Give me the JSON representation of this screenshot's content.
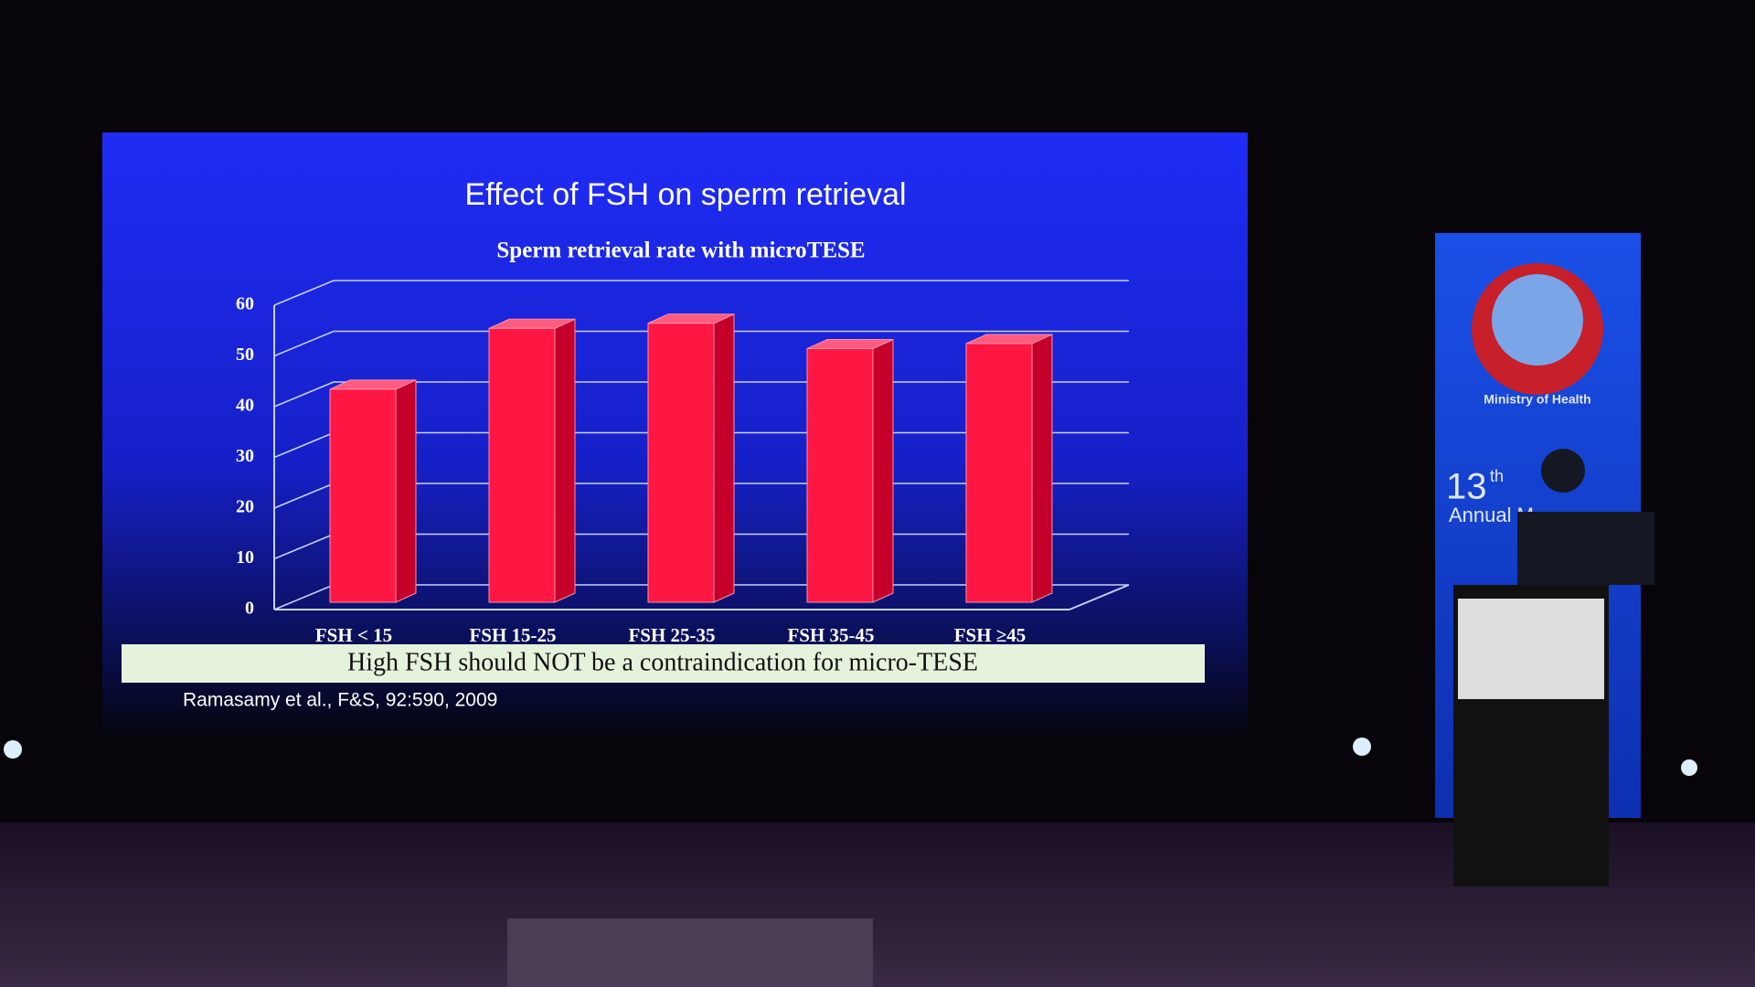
{
  "chart_data": {
    "type": "bar3d",
    "title": "Effect of FSH on sperm retrieval",
    "subtitle": "Sperm retrieval rate with microTESE",
    "categories": [
      "FSH < 15",
      "FSH 15-25",
      "FSH 25-35",
      "FSH 35-45",
      "FSH ≥45"
    ],
    "values": [
      42,
      54,
      55,
      50,
      51
    ],
    "color": "#ff1744",
    "ylim": [
      0,
      60
    ],
    "yticks": [
      0,
      10,
      20,
      30,
      40,
      50,
      60
    ],
    "grid": true,
    "annotation": "High FSH should NOT be a contraindication for micro-TESE",
    "source": "Ramasamy et al., F&S, 92:590, 2009"
  },
  "banner": {
    "org": "Ministry of Health",
    "event_number": "13",
    "event_suffix": "th",
    "event_line2": "Annual M"
  }
}
